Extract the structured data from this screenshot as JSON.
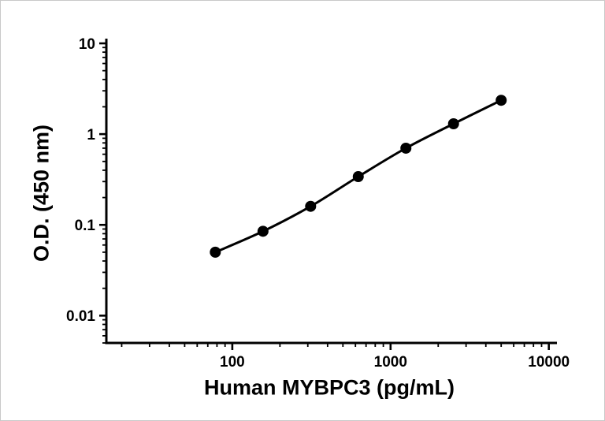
{
  "chart_data": {
    "type": "line",
    "scale": "log-log",
    "title": "",
    "xlabel": "Human MYBPC3 (pg/mL)",
    "ylabel": "O.D. (450 nm)",
    "x": [
      78.1,
      156.3,
      312.5,
      625,
      1250,
      2500,
      5000
    ],
    "y": [
      0.05,
      0.085,
      0.16,
      0.34,
      0.7,
      1.3,
      2.36
    ],
    "xlim": [
      16,
      11000
    ],
    "ylim": [
      0.005,
      10
    ],
    "x_ticks": [
      100,
      1000,
      10000
    ],
    "x_tick_labels": [
      "100",
      "1000",
      "10000"
    ],
    "y_ticks": [
      0.01,
      0.1,
      1,
      10
    ],
    "y_tick_labels": [
      "0.01",
      "0.1",
      "1",
      "10"
    ],
    "grid": false,
    "legend": null,
    "marker": "circle",
    "marker_radius": 7,
    "color": "#000000"
  }
}
